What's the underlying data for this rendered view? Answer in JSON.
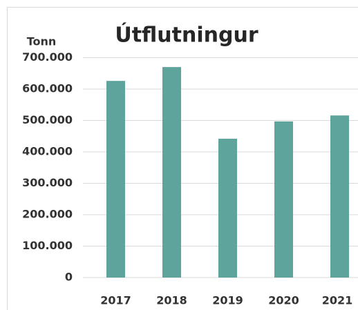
{
  "chart_data": {
    "type": "bar",
    "title": "Útflutningur",
    "y_label": "Tonn",
    "categories": [
      "2017",
      "2018",
      "2019",
      "2020",
      "2021"
    ],
    "values": [
      626000,
      670000,
      442000,
      497000,
      516000
    ],
    "color": "#5fa39d",
    "ylim": [
      0,
      700000
    ],
    "yticks": [
      0,
      {
        "value": 100000,
        "label": "100.000"
      },
      {
        "value": 200000,
        "label": "200.000"
      },
      {
        "value": 300000,
        "label": "300.000"
      },
      {
        "value": 400000,
        "label": "400.000"
      },
      {
        "value": 500000,
        "label": "500.000"
      },
      {
        "value": 600000,
        "label": "600.000"
      },
      {
        "value": 700000,
        "label": "700.000"
      }
    ],
    "grid": true
  }
}
